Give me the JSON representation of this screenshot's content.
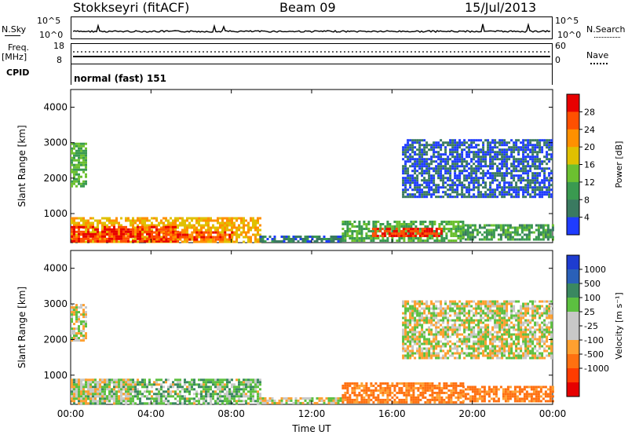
{
  "header": {
    "station": "Stokkseyri (fitACF)",
    "beam": "Beam 09",
    "date": "15/Jul/2013"
  },
  "nsky_panel": {
    "left_label": "N.Sky",
    "right_label": "N.Search",
    "tick_top": "10^5",
    "tick_bottom": "10^0"
  },
  "freq_panel": {
    "left_label": "Freq.",
    "unit_label": "[MHz]",
    "right_label": "Nave",
    "left_ticks": [
      "18",
      "8"
    ],
    "right_ticks": [
      "60",
      "0"
    ]
  },
  "cpid_panel": {
    "label": "CPID",
    "mode_text": "normal (fast) 151"
  },
  "colors": {
    "power_scale": [
      "#1f3cff",
      "#2050b0",
      "#3a7a60",
      "#3a9a50",
      "#6cc030",
      "#e0c000",
      "#ff9000",
      "#ff5000",
      "#e80000"
    ],
    "velocity_scale": [
      "#1e3cd0",
      "#2a60b8",
      "#3a8860",
      "#5cc040",
      "#c8c8c8",
      "#c8c8c8",
      "#ffa030",
      "#ff7010",
      "#ff3c00",
      "#e60000"
    ]
  },
  "chart_data": [
    {
      "type": "heatmap",
      "name": "power",
      "xlabel": "Time UT",
      "ylabel": "Slant Range [km]",
      "colorbar_label": "Power [dB]",
      "colorbar_ticks": [
        "28",
        "24",
        "20",
        "16",
        "12",
        "8",
        "4"
      ],
      "x_ticks": [
        "00:00",
        "04:00",
        "08:00",
        "12:00",
        "16:00",
        "20:00",
        "00:00"
      ],
      "y_ticks": [
        "4000",
        "3000",
        "2000",
        "1000"
      ],
      "xlim": [
        0,
        24
      ],
      "ylim": [
        180,
        4500
      ],
      "regions": [
        {
          "x": [
            0.0,
            9.4
          ],
          "y": [
            200,
            900
          ],
          "power": 20
        },
        {
          "x": [
            0.0,
            5.5
          ],
          "y": [
            250,
            650
          ],
          "power": 28
        },
        {
          "x": [
            4.0,
            8.0
          ],
          "y": [
            250,
            500
          ],
          "power": 26
        },
        {
          "x": [
            0.0,
            0.8
          ],
          "y": [
            1800,
            3000
          ],
          "power": 12
        },
        {
          "x": [
            9.4,
            13.5
          ],
          "y": [
            200,
            380
          ],
          "power": 6
        },
        {
          "x": [
            13.5,
            19.5
          ],
          "y": [
            250,
            800
          ],
          "power": 12
        },
        {
          "x": [
            15.0,
            18.5
          ],
          "y": [
            350,
            600
          ],
          "power": 28
        },
        {
          "x": [
            19.5,
            24.0
          ],
          "y": [
            250,
            700
          ],
          "power": 10
        },
        {
          "x": [
            16.5,
            24.0
          ],
          "y": [
            1500,
            3100
          ],
          "power": 4
        }
      ]
    },
    {
      "type": "heatmap",
      "name": "velocity",
      "xlabel": "Time UT",
      "ylabel": "Slant Range [km]",
      "colorbar_label": "Velocity [m s⁻¹]",
      "colorbar_ticks": [
        "1000",
        "500",
        "100",
        "25",
        "-25",
        "-100",
        "-500",
        "-1000"
      ],
      "x_ticks": [
        "00:00",
        "04:00",
        "08:00",
        "12:00",
        "16:00",
        "20:00",
        "00:00"
      ],
      "y_ticks": [
        "4000",
        "3000",
        "2000",
        "1000"
      ],
      "xlim": [
        0,
        24
      ],
      "ylim": [
        180,
        4500
      ],
      "regions": [
        {
          "x": [
            0.0,
            9.4
          ],
          "y": [
            200,
            900
          ],
          "velocity": 60
        },
        {
          "x": [
            0.0,
            3.0
          ],
          "y": [
            300,
            900
          ],
          "velocity": 0
        },
        {
          "x": [
            0.0,
            0.8
          ],
          "y": [
            2000,
            3000
          ],
          "velocity": 0
        },
        {
          "x": [
            9.4,
            13.5
          ],
          "y": [
            200,
            380
          ],
          "velocity": 0
        },
        {
          "x": [
            13.5,
            19.5
          ],
          "y": [
            250,
            800
          ],
          "velocity": -150
        },
        {
          "x": [
            19.5,
            24.0
          ],
          "y": [
            250,
            700
          ],
          "velocity": -150
        },
        {
          "x": [
            16.5,
            24.0
          ],
          "y": [
            1500,
            3100
          ],
          "velocity": 0
        }
      ]
    }
  ]
}
